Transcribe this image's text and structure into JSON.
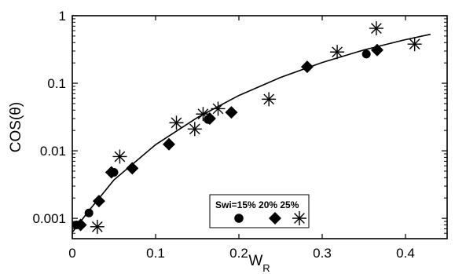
{
  "chart_data": {
    "type": "scatter",
    "title": "",
    "xlabel": "W",
    "xlabel_sub": "R",
    "ylabel": "COS(θ)",
    "xlim": [
      0,
      0.45
    ],
    "ylim": [
      0.0005,
      1
    ],
    "y_scale": "log",
    "grid": false,
    "x_ticks": [
      0,
      0.1,
      0.2,
      0.3,
      0.4
    ],
    "x_tick_labels": [
      "0",
      "0.1",
      "0.2",
      "0.3",
      "0.4"
    ],
    "y_ticks": [
      0.001,
      0.01,
      0.1,
      1
    ],
    "y_tick_labels": [
      "0.001",
      "0.01",
      "0.1",
      "1"
    ],
    "legend": {
      "position": "bottom-center",
      "labels": [
        "Swi=15%",
        "20%",
        "25%"
      ],
      "text": "Swi=15% 20% 25%"
    },
    "series": [
      {
        "name": "Swi=15%",
        "marker": "circle",
        "color": "#000000",
        "x": [
          0.005,
          0.02,
          0.05,
          0.163,
          0.353
        ],
        "y": [
          0.0008,
          0.0012,
          0.0048,
          0.029,
          0.27
        ]
      },
      {
        "name": "20%",
        "marker": "diamond",
        "color": "#000000",
        "x": [
          0.01,
          0.032,
          0.047,
          0.072,
          0.116,
          0.165,
          0.191,
          0.282,
          0.366
        ],
        "y": [
          0.0008,
          0.0018,
          0.0048,
          0.0055,
          0.0125,
          0.03,
          0.037,
          0.175,
          0.31
        ]
      },
      {
        "name": "25%",
        "marker": "asterisk",
        "color": "#000000",
        "x": [
          0.03,
          0.057,
          0.125,
          0.147,
          0.157,
          0.175,
          0.236,
          0.318,
          0.365,
          0.411
        ],
        "y": [
          0.00075,
          0.0082,
          0.026,
          0.021,
          0.035,
          0.042,
          0.058,
          0.29,
          0.65,
          0.38
        ]
      },
      {
        "name": "",
        "marker": "line",
        "color": "#000000",
        "x": [
          0.0,
          0.02,
          0.05,
          0.1,
          0.15,
          0.2,
          0.25,
          0.3,
          0.35,
          0.4,
          0.43
        ],
        "y": [
          0.00062,
          0.0013,
          0.0037,
          0.0123,
          0.031,
          0.066,
          0.122,
          0.203,
          0.311,
          0.442,
          0.53
        ]
      }
    ]
  }
}
